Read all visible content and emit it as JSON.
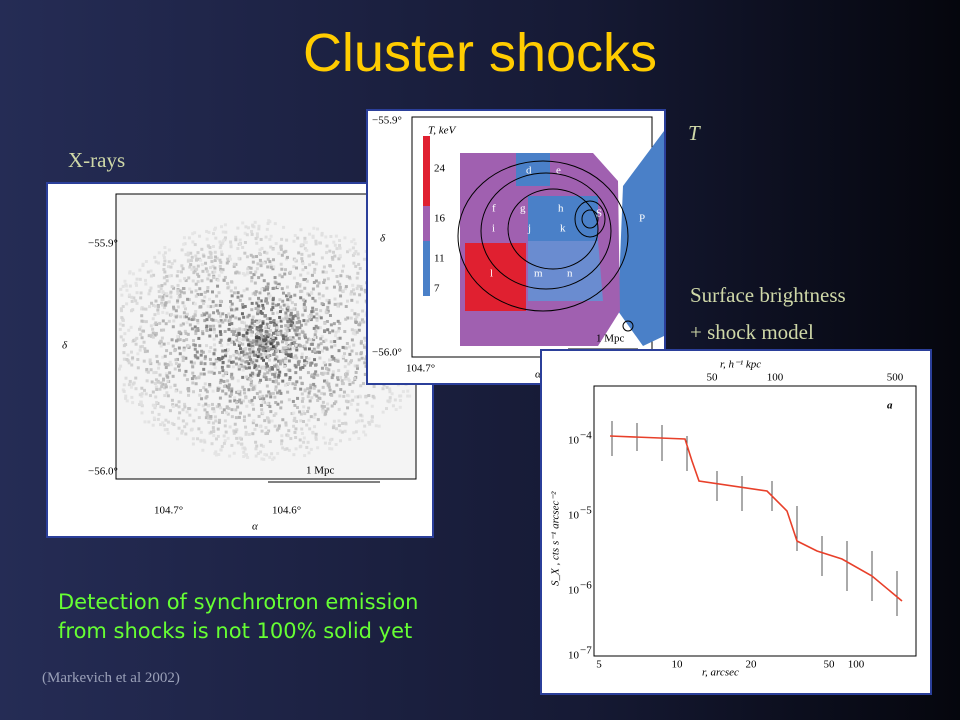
{
  "title": "Cluster shocks",
  "labels": {
    "xrays": "X-rays",
    "temperature": "T",
    "surface_brightness": "Surface brightness",
    "shock_model": "+ shock model"
  },
  "xray_panel": {
    "dec_top": "−55.9°",
    "dec_bottom": "−56.0°",
    "dec_axis": "δ",
    "ra_left": "104.7°",
    "ra_right": "104.6°",
    "ra_axis": "α",
    "scale": "1 Mpc"
  },
  "temperature_panel": {
    "dec_top": "−55.9°",
    "dec_bottom": "−56.0°",
    "dec_axis": "δ",
    "ra_left": "104.7°",
    "ra_axis": "α",
    "scale": "1 Mpc",
    "colorbar_title": "T, keV",
    "colorbar_ticks": [
      "24",
      "16",
      "11",
      "7"
    ],
    "regions": [
      "d",
      "e",
      "f",
      "g",
      "h",
      "S",
      "P",
      "i",
      "j",
      "k",
      "l",
      "m",
      "n"
    ]
  },
  "profile_panel": {
    "panel": "a",
    "top_axis": "r, h⁻¹ kpc",
    "top_ticks": [
      "50",
      "100",
      "500"
    ],
    "x_axis": "r, arcsec",
    "x_ticks": [
      "5",
      "10",
      "20",
      "50",
      "100"
    ],
    "y_axis": "S_X , cts s⁻¹ arcsec⁻²",
    "y_tick_base": "10",
    "y_tick_exponents": [
      "−4",
      "−5",
      "−6",
      "−7"
    ]
  },
  "note": [
    "Detection of synchrotron emission",
    "from shocks is not 100% solid yet"
  ],
  "citation": "(Markevich et al  2002)"
}
